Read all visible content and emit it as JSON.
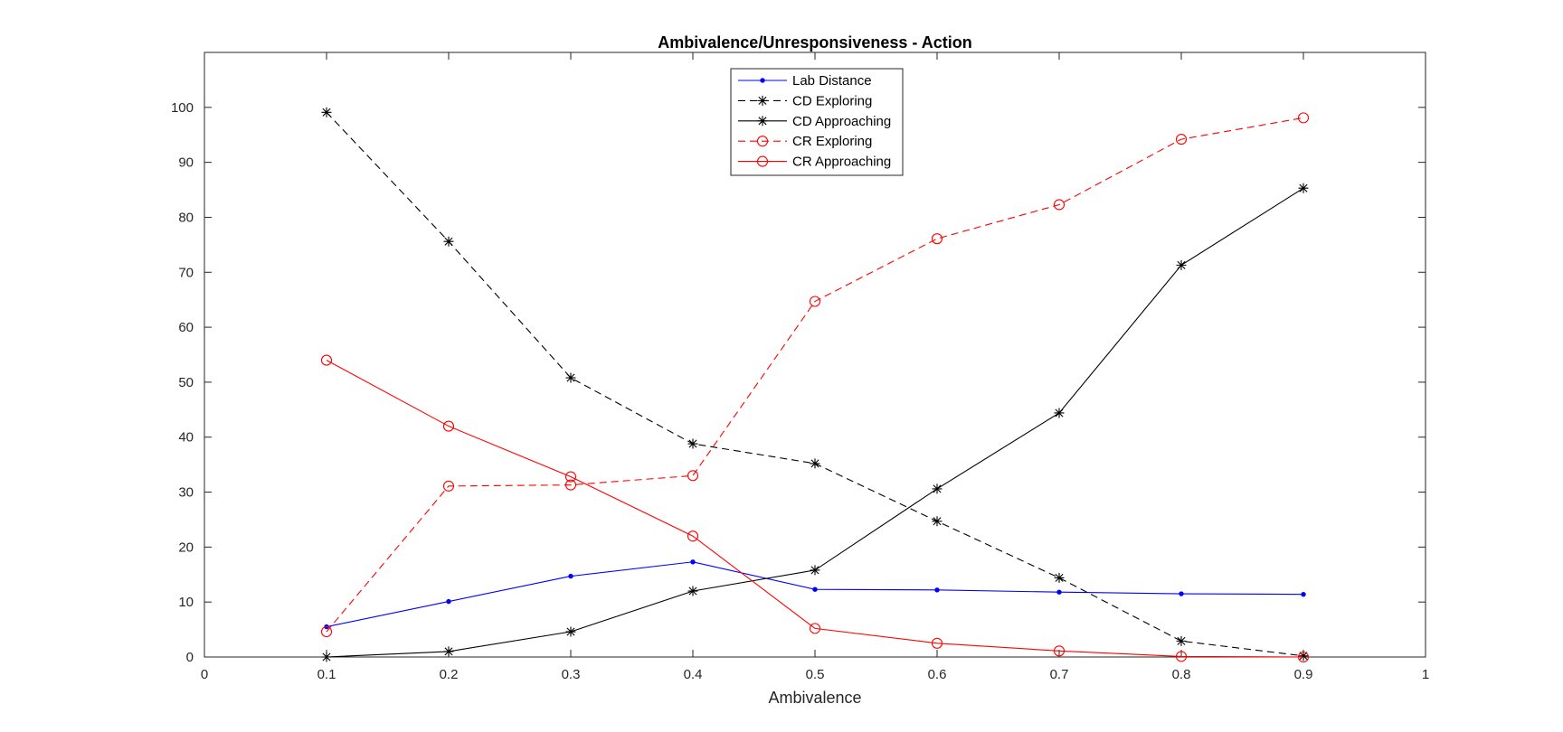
{
  "chart_data": {
    "type": "line",
    "title": "Ambivalence/Unresponsiveness - Action",
    "xlabel": "Ambivalence",
    "ylabel": "",
    "xlim": [
      0,
      1
    ],
    "ylim": [
      0,
      110
    ],
    "xticks": [
      0,
      0.1,
      0.2,
      0.3,
      0.4,
      0.5,
      0.6,
      0.7,
      0.8,
      0.9,
      1
    ],
    "xtick_labels": [
      "0",
      "0.1",
      "0.2",
      "0.3",
      "0.4",
      "0.5",
      "0.6",
      "0.7",
      "0.8",
      "0.9",
      "1"
    ],
    "yticks": [
      0,
      10,
      20,
      30,
      40,
      50,
      60,
      70,
      80,
      90,
      100
    ],
    "ytick_labels": [
      "0",
      "10",
      "20",
      "30",
      "40",
      "50",
      "60",
      "70",
      "80",
      "90",
      "100"
    ],
    "grid": false,
    "legend_position": "top-center",
    "x": [
      0.1,
      0.2,
      0.3,
      0.4,
      0.5,
      0.6,
      0.7,
      0.8,
      0.9
    ],
    "series": [
      {
        "name": "Lab Distance",
        "color": "#0000ff",
        "dash": "solid",
        "marker": "dot",
        "values": [
          5.5,
          10.1,
          14.7,
          17.3,
          12.3,
          12.2,
          11.8,
          11.5,
          11.4
        ]
      },
      {
        "name": "CD Exploring",
        "color": "#000000",
        "dash": "dashed",
        "marker": "asterisk",
        "values": [
          99.1,
          75.6,
          50.8,
          38.8,
          35.2,
          24.7,
          14.4,
          2.9,
          0.2
        ]
      },
      {
        "name": "CD Approaching",
        "color": "#000000",
        "dash": "solid",
        "marker": "asterisk",
        "values": [
          0.0,
          1.0,
          4.6,
          12.0,
          15.8,
          30.6,
          44.4,
          71.3,
          85.3
        ]
      },
      {
        "name": "CR Exploring",
        "color": "#ff0000",
        "dash": "dashed",
        "marker": "circle",
        "values": [
          4.6,
          31.1,
          31.3,
          33.0,
          64.7,
          76.1,
          82.3,
          94.2,
          98.1
        ]
      },
      {
        "name": "CR Approaching",
        "color": "#ff0000",
        "dash": "solid",
        "marker": "circle",
        "values": [
          54.0,
          42.0,
          32.8,
          22.0,
          5.2,
          2.5,
          1.1,
          0.1,
          0.0
        ]
      }
    ]
  }
}
